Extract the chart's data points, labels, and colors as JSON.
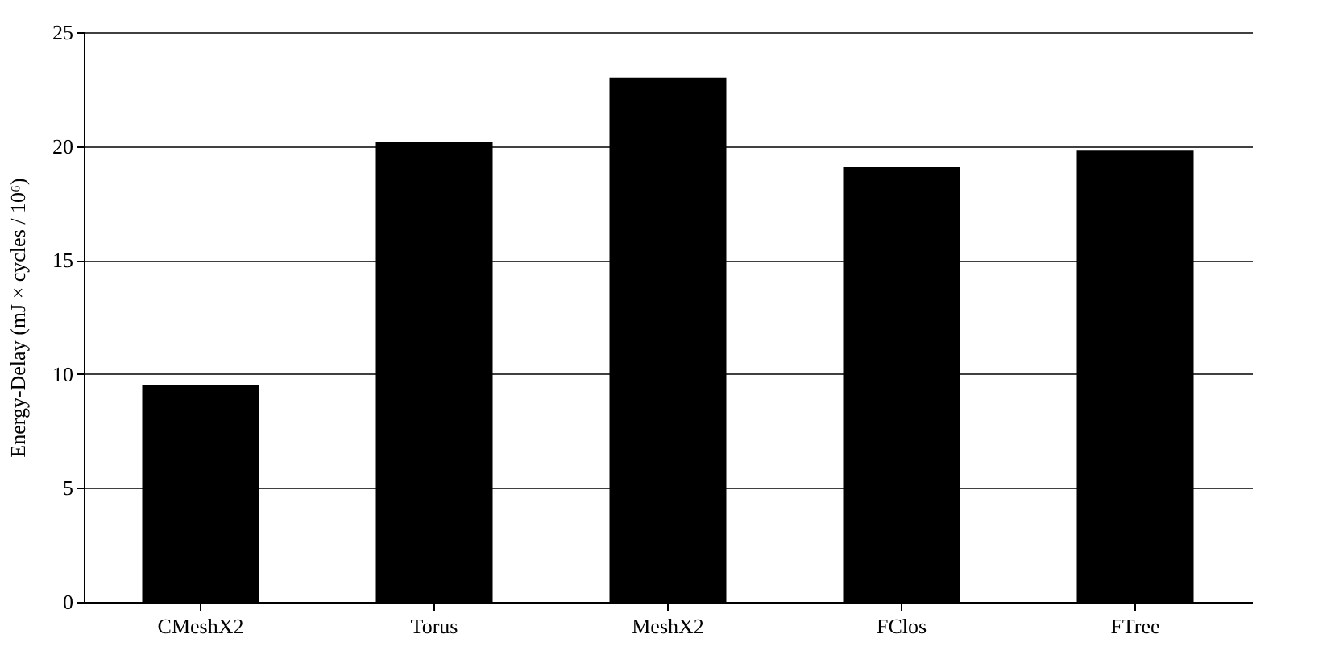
{
  "chart_data": {
    "type": "bar",
    "ylabel": "Energy-Delay (mJ × cycles / 10⁶)",
    "categories": [
      "CMeshX2",
      "Torus",
      "MeshX2",
      "FClos",
      "FTree"
    ],
    "values": [
      9.5,
      20.2,
      23.0,
      19.1,
      19.8
    ],
    "color": "#000000",
    "ylim": [
      0,
      25
    ],
    "yticks": [
      0,
      5,
      10,
      15,
      20,
      25
    ],
    "grid": "y"
  }
}
